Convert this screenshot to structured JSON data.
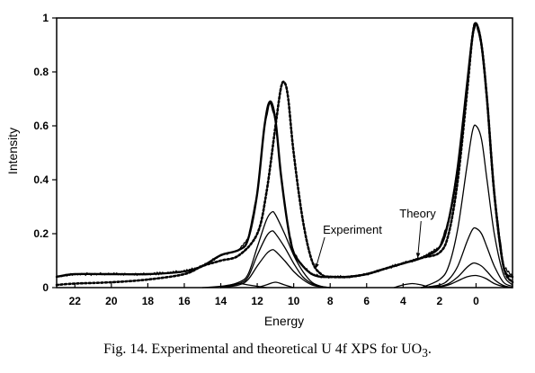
{
  "chart_data": {
    "type": "line",
    "xlabel": "Energy",
    "ylabel": "Intensity",
    "xlim": [
      23,
      -2
    ],
    "ylim": [
      0,
      1
    ],
    "x_reversed": true,
    "x_ticks": [
      22,
      20,
      18,
      16,
      14,
      12,
      10,
      8,
      6,
      4,
      2,
      0
    ],
    "y_ticks": [
      0,
      0.2,
      0.4,
      0.6,
      0.8,
      1
    ],
    "y_tick_labels": [
      "0",
      "0.2",
      "0.4",
      "0.6",
      "0.8",
      "1"
    ],
    "series": [
      {
        "name": "Experiment",
        "style": "solid-bold-noisy",
        "x": [
          23,
          22,
          20,
          18,
          16,
          15,
          14,
          13,
          12.5,
          12,
          11.6,
          11.3,
          11,
          10.7,
          10.3,
          10,
          9.5,
          9,
          8.5,
          8,
          7,
          6,
          5,
          4,
          3,
          2,
          1.5,
          1,
          0.5,
          0.2,
          0,
          -0.3,
          -0.6,
          -1,
          -1.5,
          -2
        ],
        "y": [
          0.04,
          0.05,
          0.05,
          0.05,
          0.06,
          0.08,
          0.12,
          0.14,
          0.18,
          0.35,
          0.6,
          0.69,
          0.62,
          0.42,
          0.22,
          0.13,
          0.08,
          0.05,
          0.04,
          0.04,
          0.04,
          0.05,
          0.07,
          0.09,
          0.11,
          0.15,
          0.25,
          0.45,
          0.75,
          0.93,
          0.98,
          0.9,
          0.7,
          0.35,
          0.08,
          0.04
        ]
      },
      {
        "name": "Theory",
        "style": "dotted-bold",
        "x": [
          23,
          22,
          20,
          18,
          16,
          15,
          14,
          13,
          12,
          11.5,
          11,
          10.7,
          10.5,
          10.3,
          10,
          9.5,
          9,
          8.5,
          8,
          7,
          6,
          5,
          4,
          3,
          2,
          1.5,
          1,
          0.5,
          0.2,
          0,
          -0.3,
          -0.6,
          -1,
          -1.5,
          -2
        ],
        "y": [
          0.01,
          0.015,
          0.02,
          0.03,
          0.05,
          0.08,
          0.1,
          0.12,
          0.2,
          0.35,
          0.6,
          0.74,
          0.76,
          0.7,
          0.5,
          0.25,
          0.1,
          0.05,
          0.04,
          0.04,
          0.05,
          0.07,
          0.09,
          0.11,
          0.13,
          0.2,
          0.4,
          0.72,
          0.93,
          0.98,
          0.9,
          0.7,
          0.35,
          0.08,
          0.02
        ]
      },
      {
        "name": "",
        "style": "component",
        "x": [
          14,
          13,
          12.5,
          12,
          11.5,
          11.2,
          11,
          10.5,
          10,
          9.5,
          9,
          8.5,
          8
        ],
        "y": [
          0,
          0.02,
          0.05,
          0.15,
          0.25,
          0.28,
          0.27,
          0.2,
          0.12,
          0.06,
          0.02,
          0.005,
          0
        ]
      },
      {
        "name": "",
        "style": "component",
        "x": [
          14,
          13,
          12.5,
          12,
          11.5,
          11.2,
          11,
          10.5,
          10,
          9.5,
          9,
          8.5,
          8
        ],
        "y": [
          0,
          0.015,
          0.04,
          0.12,
          0.19,
          0.21,
          0.2,
          0.15,
          0.09,
          0.04,
          0.015,
          0.004,
          0
        ]
      },
      {
        "name": "",
        "style": "component",
        "x": [
          14,
          13,
          12.5,
          12,
          11.5,
          11.2,
          11,
          10.5,
          10,
          9.5,
          9,
          8.5,
          8
        ],
        "y": [
          0,
          0.01,
          0.03,
          0.08,
          0.125,
          0.14,
          0.135,
          0.1,
          0.06,
          0.03,
          0.01,
          0.003,
          0
        ]
      },
      {
        "name": "",
        "style": "component",
        "x": [
          3,
          2,
          1.5,
          1,
          0.5,
          0.2,
          0,
          -0.3,
          -0.6,
          -1,
          -1.5,
          -2
        ],
        "y": [
          0,
          0.03,
          0.08,
          0.22,
          0.45,
          0.58,
          0.6,
          0.55,
          0.4,
          0.2,
          0.05,
          0.01
        ]
      },
      {
        "name": "",
        "style": "component",
        "x": [
          3,
          2,
          1.5,
          1,
          0.5,
          0.2,
          0,
          -0.3,
          -0.6,
          -1,
          -1.5,
          -2
        ],
        "y": [
          0,
          0.01,
          0.03,
          0.08,
          0.17,
          0.215,
          0.22,
          0.2,
          0.15,
          0.08,
          0.02,
          0.005
        ]
      },
      {
        "name": "",
        "style": "component",
        "x": [
          3,
          2,
          1.5,
          1,
          0.5,
          0.2,
          0,
          -0.3,
          -0.6,
          -1,
          -1.5,
          -2
        ],
        "y": [
          0,
          0.005,
          0.015,
          0.04,
          0.075,
          0.09,
          0.09,
          0.08,
          0.06,
          0.03,
          0.008,
          0
        ]
      },
      {
        "name": "",
        "style": "component",
        "x": [
          3,
          2,
          1.5,
          1,
          0.5,
          0,
          -0.5,
          -1,
          -1.5,
          -2
        ],
        "y": [
          0,
          0.003,
          0.01,
          0.025,
          0.04,
          0.045,
          0.035,
          0.015,
          0.004,
          0
        ]
      },
      {
        "name": "",
        "style": "component",
        "x": [
          4.5,
          4,
          3.5,
          3,
          2.5
        ],
        "y": [
          0,
          0.01,
          0.015,
          0.01,
          0
        ]
      },
      {
        "name": "",
        "style": "component",
        "x": [
          15,
          14,
          13.5,
          13,
          12.5,
          12,
          11.5
        ],
        "y": [
          0,
          0.005,
          0.01,
          0.015,
          0.01,
          0.005,
          0
        ]
      },
      {
        "name": "",
        "style": "component",
        "x": [
          12,
          11.5,
          11,
          10.5,
          10
        ],
        "y": [
          0,
          0.01,
          0.02,
          0.01,
          0
        ]
      }
    ],
    "annotations": [
      {
        "text": "Experiment",
        "x": 8.4,
        "y": 0.2,
        "arrow_to": [
          8.8,
          0.07
        ]
      },
      {
        "text": "Theory",
        "x": 4.2,
        "y": 0.26,
        "arrow_to": [
          3.2,
          0.11
        ]
      }
    ]
  },
  "caption": {
    "prefix": "Fig. 14.  Experimental and theoretical U 4f XPS for UO",
    "subscript": "3",
    "suffix": "."
  }
}
